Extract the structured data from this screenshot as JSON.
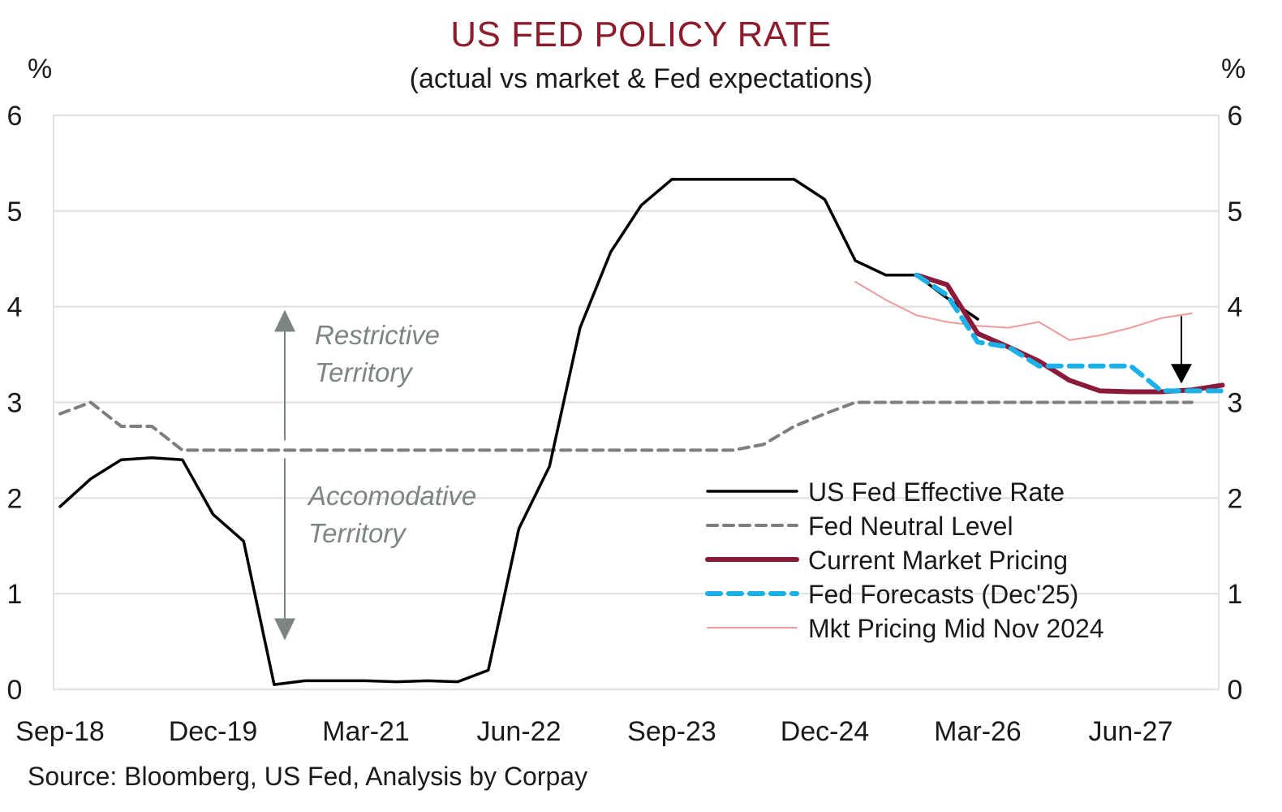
{
  "chart_data": {
    "type": "line",
    "title": "US FED POLICY RATE",
    "subtitle": "(actual vs market & Fed expectations)",
    "ylabel_left": "%",
    "ylabel_right": "%",
    "xlabel": "",
    "ylim": [
      0,
      6
    ],
    "yticks": [
      0,
      1,
      2,
      3,
      4,
      5,
      6
    ],
    "grid": true,
    "legend_position": "bottom-right",
    "x_start": "Sep-18",
    "x_frequency": "quarterly",
    "x_tick_labels": [
      {
        "label": "Sep-18",
        "index": 0
      },
      {
        "label": "Dec-19",
        "index": 5
      },
      {
        "label": "Mar-21",
        "index": 10
      },
      {
        "label": "Jun-22",
        "index": 15
      },
      {
        "label": "Sep-23",
        "index": 20
      },
      {
        "label": "Dec-24",
        "index": 25
      },
      {
        "label": "Mar-26",
        "index": 30
      },
      {
        "label": "Jun-27",
        "index": 35
      }
    ],
    "series": [
      {
        "name": "US Fed Effective Rate",
        "color": "#000000",
        "style": "solid",
        "start_index": 0,
        "values": [
          1.91,
          2.2,
          2.4,
          2.42,
          2.4,
          1.83,
          1.55,
          0.05,
          0.09,
          0.09,
          0.09,
          0.08,
          0.09,
          0.08,
          0.2,
          1.68,
          2.33,
          3.78,
          4.57,
          5.06,
          5.33,
          5.33,
          5.33,
          5.33,
          5.33,
          5.12,
          4.48,
          4.33,
          4.33,
          4.09,
          3.87
        ]
      },
      {
        "name": "Fed Neutral Level",
        "color": "#7b807d",
        "style": "dashed",
        "start_index": 0,
        "values": [
          2.88,
          3.0,
          2.75,
          2.75,
          2.5,
          2.5,
          2.5,
          2.5,
          2.5,
          2.5,
          2.5,
          2.5,
          2.5,
          2.5,
          2.5,
          2.5,
          2.5,
          2.5,
          2.5,
          2.5,
          2.5,
          2.5,
          2.5,
          2.56,
          2.75,
          2.88,
          3.0,
          3.0,
          3.0,
          3.0,
          3.0,
          3.0,
          3.0,
          3.0,
          3.0,
          3.0,
          3.0,
          3.0
        ]
      },
      {
        "name": "Current Market Pricing",
        "color": "#8b1a3a",
        "style": "solid-thick",
        "start_index": 28,
        "values": [
          4.33,
          4.23,
          3.72,
          3.58,
          3.43,
          3.23,
          3.12,
          3.11,
          3.11,
          3.13,
          3.18
        ]
      },
      {
        "name": "Fed Forecasts (Dec'25)",
        "color": "#1ab0e8",
        "style": "dashed-thick",
        "start_index": 28,
        "values": [
          4.33,
          4.12,
          3.63,
          3.58,
          3.38,
          3.38,
          3.38,
          3.38,
          3.12,
          3.12,
          3.12
        ]
      },
      {
        "name": "Mkt Pricing Mid Nov 2024",
        "color": "#ef9a9a",
        "style": "solid-thin",
        "start_index": 26,
        "values": [
          4.26,
          4.07,
          3.91,
          3.84,
          3.8,
          3.78,
          3.84,
          3.65,
          3.7,
          3.78,
          3.88,
          3.93
        ]
      }
    ],
    "annotations": [
      {
        "id": "restrictive",
        "lines": [
          "Restrictive",
          "Territory"
        ],
        "arrow": "up",
        "from_value": 2.5,
        "to_value": 3.95
      },
      {
        "id": "accomodative",
        "lines": [
          "Accomodative",
          "Territory"
        ],
        "arrow": "down",
        "from_value": 2.5,
        "to_value": 1.15
      },
      {
        "id": "drop-marker",
        "arrow": "down",
        "index": 37,
        "from_value": 3.85,
        "to_value": 3.18
      }
    ]
  },
  "source": "Source: Bloomberg, US Fed, Analysis by Corpay",
  "colors": {
    "title": "#8c1d2c",
    "grid": "#e3e3e3",
    "annotation": "#7d8582"
  }
}
